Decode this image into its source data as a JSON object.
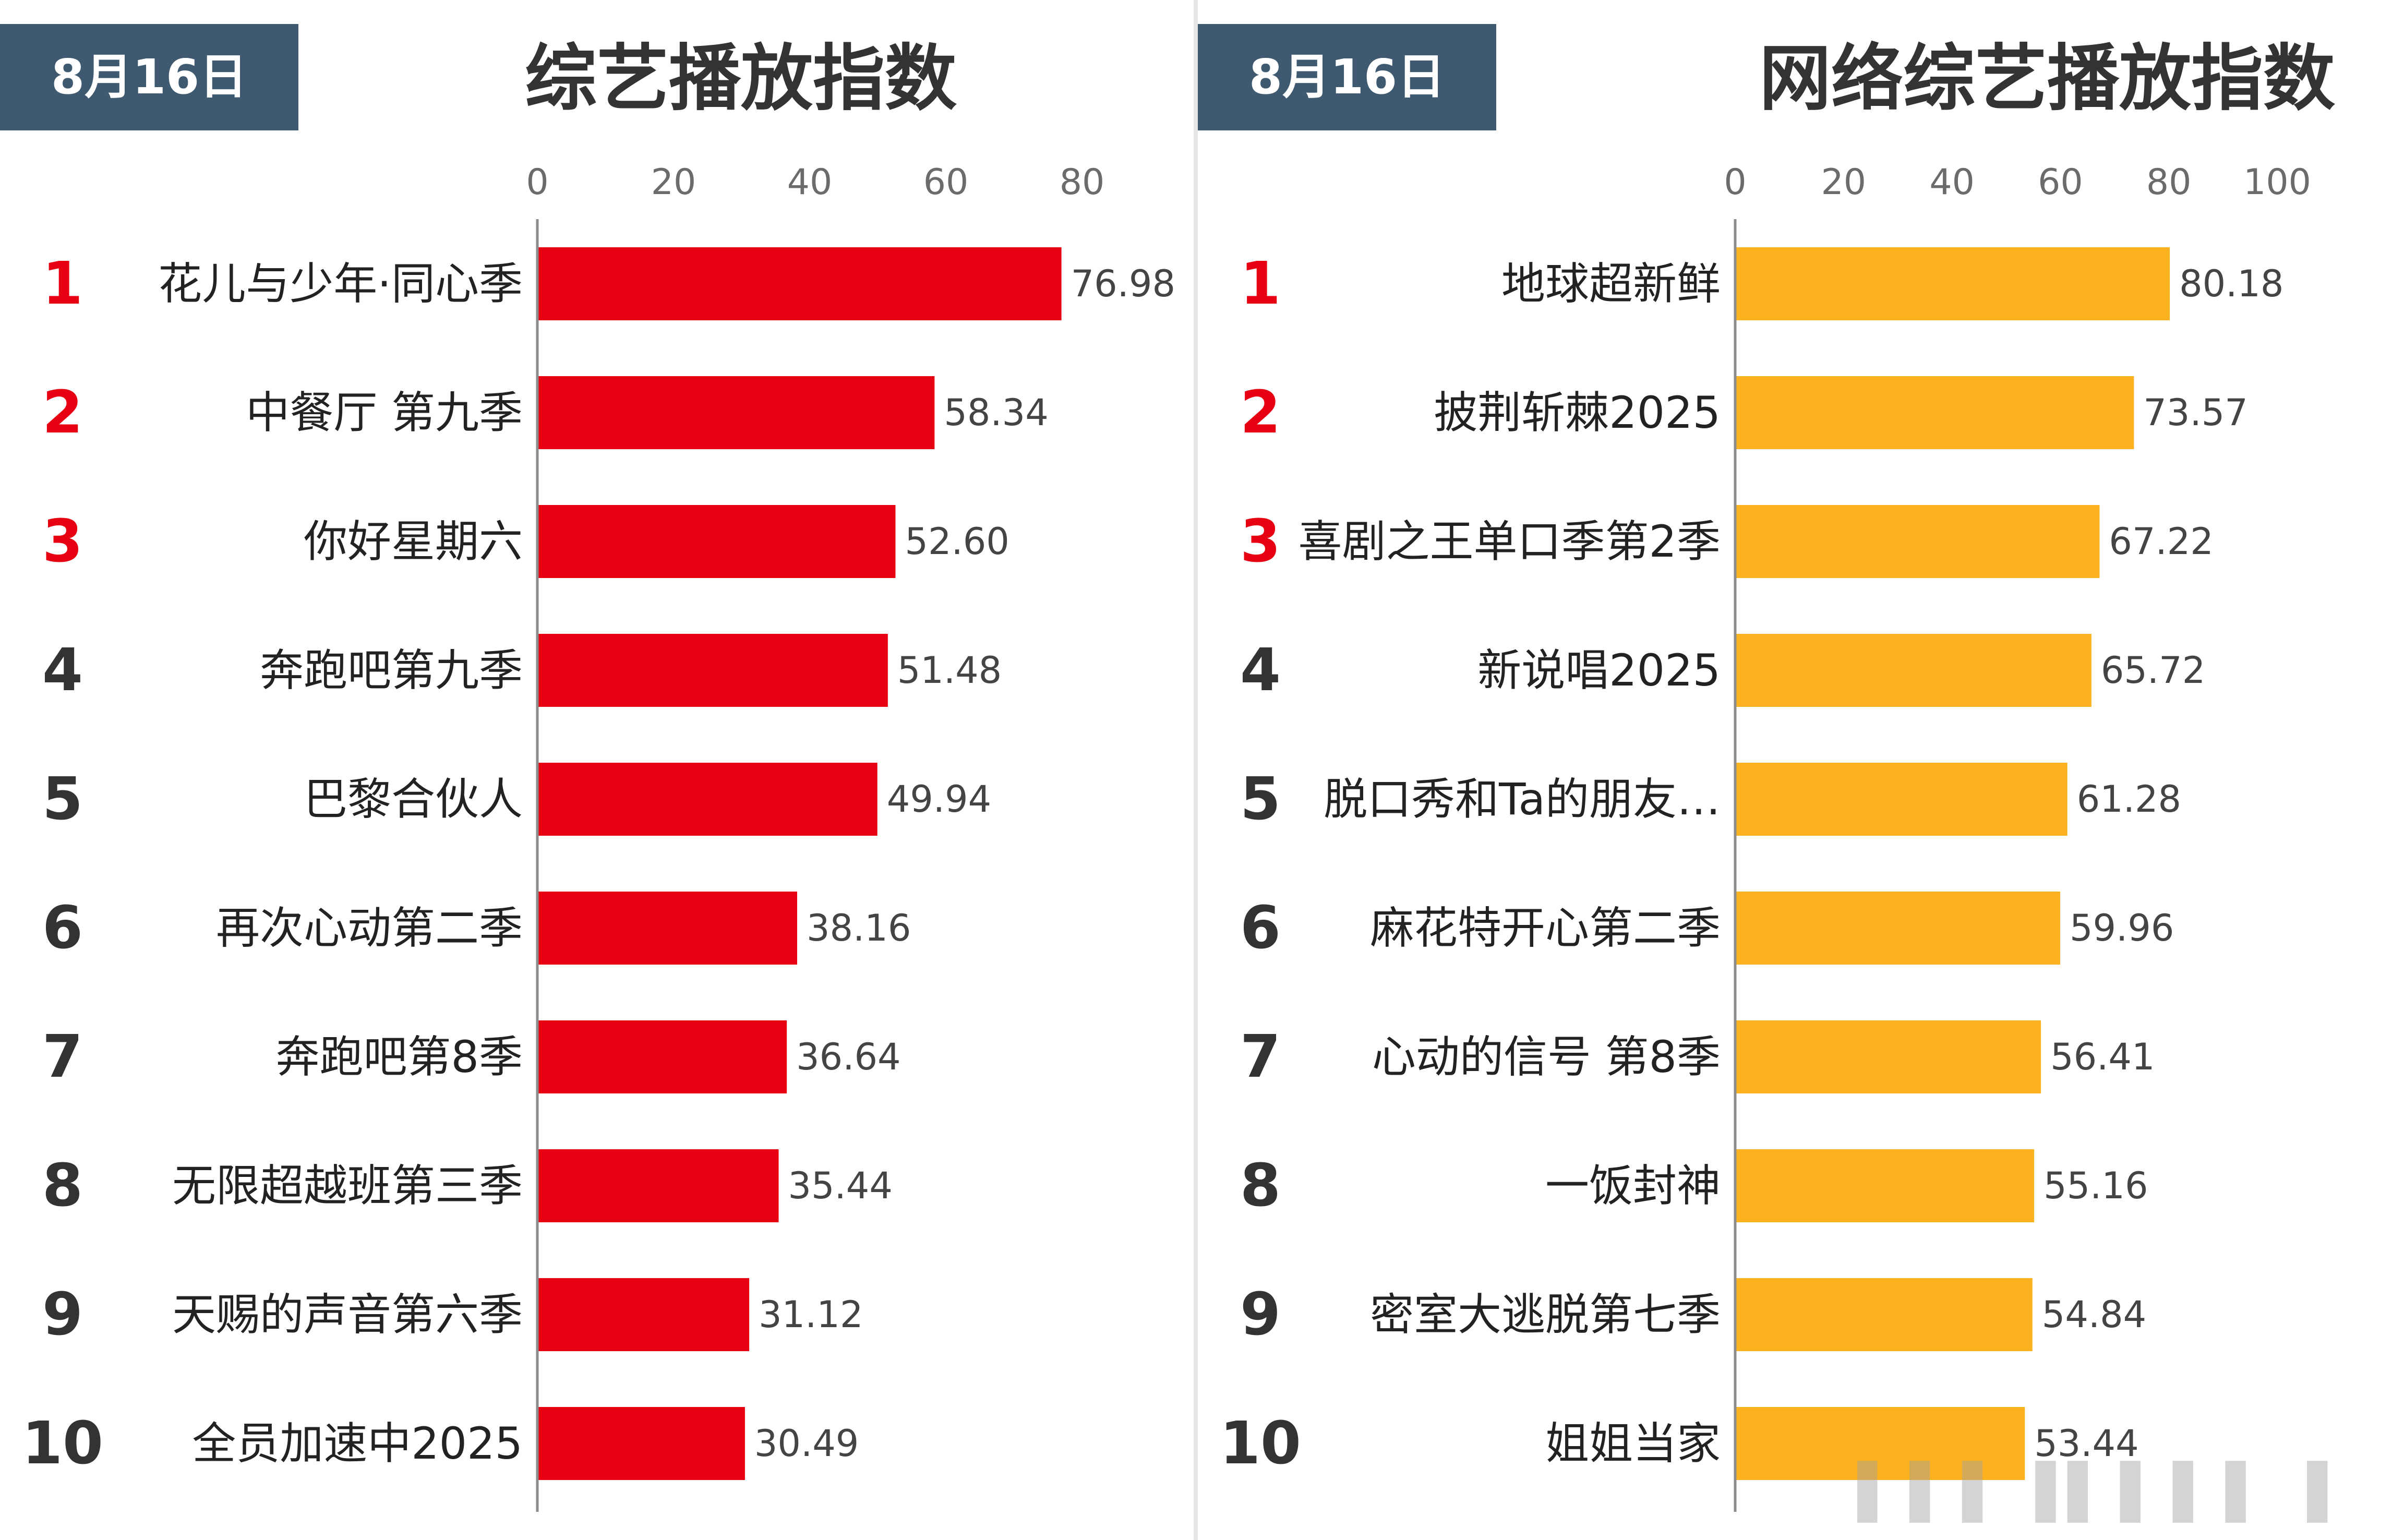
{
  "panels": [
    {
      "date": "8月16日",
      "title": "综艺播放指数",
      "bar_color": "#e60012",
      "top_rank_color": "#e60012",
      "rank_color": "#333333",
      "chart_data": {
        "type": "bar",
        "orientation": "horizontal",
        "title": "综艺播放指数",
        "xlim": [
          0,
          80
        ],
        "x_ticks": [
          0,
          20,
          40,
          60,
          80
        ],
        "ranks": [
          "1",
          "2",
          "3",
          "4",
          "5",
          "6",
          "7",
          "8",
          "9",
          "10"
        ],
        "categories": [
          "花儿与少年·同心季",
          "中餐厅 第九季",
          "你好星期六",
          "奔跑吧第九季",
          "巴黎合伙人",
          "再次心动第二季",
          "奔跑吧第8季",
          "无限超越班第三季",
          "天赐的声音第六季",
          "全员加速中2025"
        ],
        "values": [
          76.98,
          58.34,
          52.6,
          51.48,
          49.94,
          38.16,
          36.64,
          35.44,
          31.12,
          30.49
        ],
        "value_labels": [
          "76.98",
          "58.34",
          "52.60",
          "51.48",
          "49.94",
          "38.16",
          "36.64",
          "35.44",
          "31.12",
          "30.49"
        ]
      }
    },
    {
      "date": "8月16日",
      "title": "网络综艺播放指数",
      "bar_color": "#fbb21e",
      "top_rank_color": "#e60012",
      "rank_color": "#333333",
      "chart_data": {
        "type": "bar",
        "orientation": "horizontal",
        "title": "网络综艺播放指数",
        "xlim": [
          0,
          100
        ],
        "x_ticks": [
          0,
          20,
          40,
          60,
          80,
          100
        ],
        "ranks": [
          "1",
          "2",
          "3",
          "4",
          "5",
          "6",
          "7",
          "8",
          "9",
          "10"
        ],
        "categories": [
          "地球超新鲜",
          "披荆斩棘2025",
          "喜剧之王单口季第2季",
          "新说唱2025",
          "脱口秀和Ta的朋友…",
          "麻花特开心第二季",
          "心动的信号 第8季",
          "一饭封神",
          "密室大逃脱第七季",
          "姐姐当家"
        ],
        "values": [
          80.18,
          73.57,
          67.22,
          65.72,
          61.28,
          59.96,
          56.41,
          55.16,
          54.84,
          53.44
        ],
        "value_labels": [
          "80.18",
          "73.57",
          "67.22",
          "65.72",
          "61.28",
          "59.96",
          "56.41",
          "55.16",
          "54.84",
          "53.44"
        ]
      }
    }
  ]
}
